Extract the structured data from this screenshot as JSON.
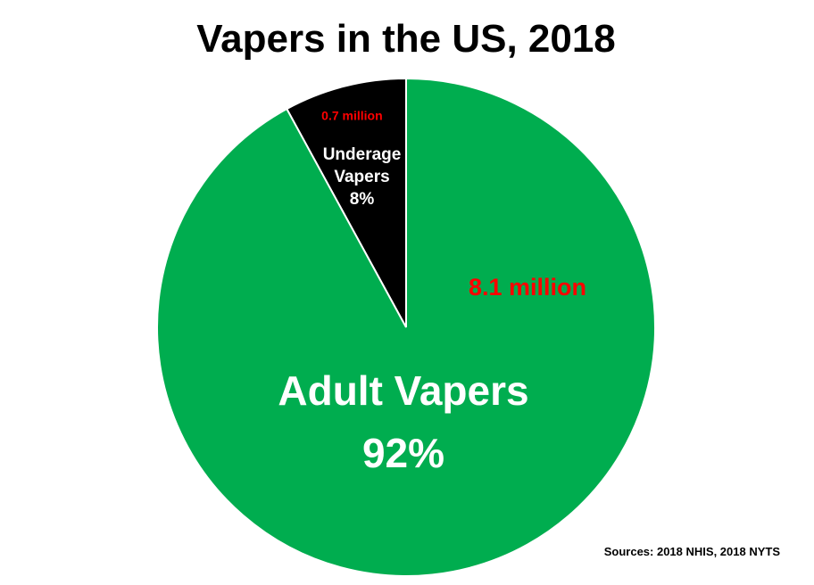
{
  "chart_data": {
    "type": "pie",
    "title": "Vapers in the US, 2018",
    "slices": [
      {
        "name": "Underage Vapers",
        "name_lines": [
          "Underage",
          "Vapers"
        ],
        "percent_label": "8%",
        "value": 0.7,
        "value_label": "0.7 million",
        "color": "#000000",
        "text_color": "#ffffff",
        "value_color": "#ff0000"
      },
      {
        "name": "Adult Vapers",
        "name_lines": [
          "Adult Vapers"
        ],
        "percent_label": "92%",
        "value": 8.1,
        "value_label": "8.1 million",
        "color": "#00ad4f",
        "text_color": "#ffffff",
        "value_color": "#ff0000"
      }
    ],
    "start_angle_deg": 0,
    "direction": "counterclockwise",
    "source": "Sources: 2018 NHIS, 2018 NYTS"
  }
}
